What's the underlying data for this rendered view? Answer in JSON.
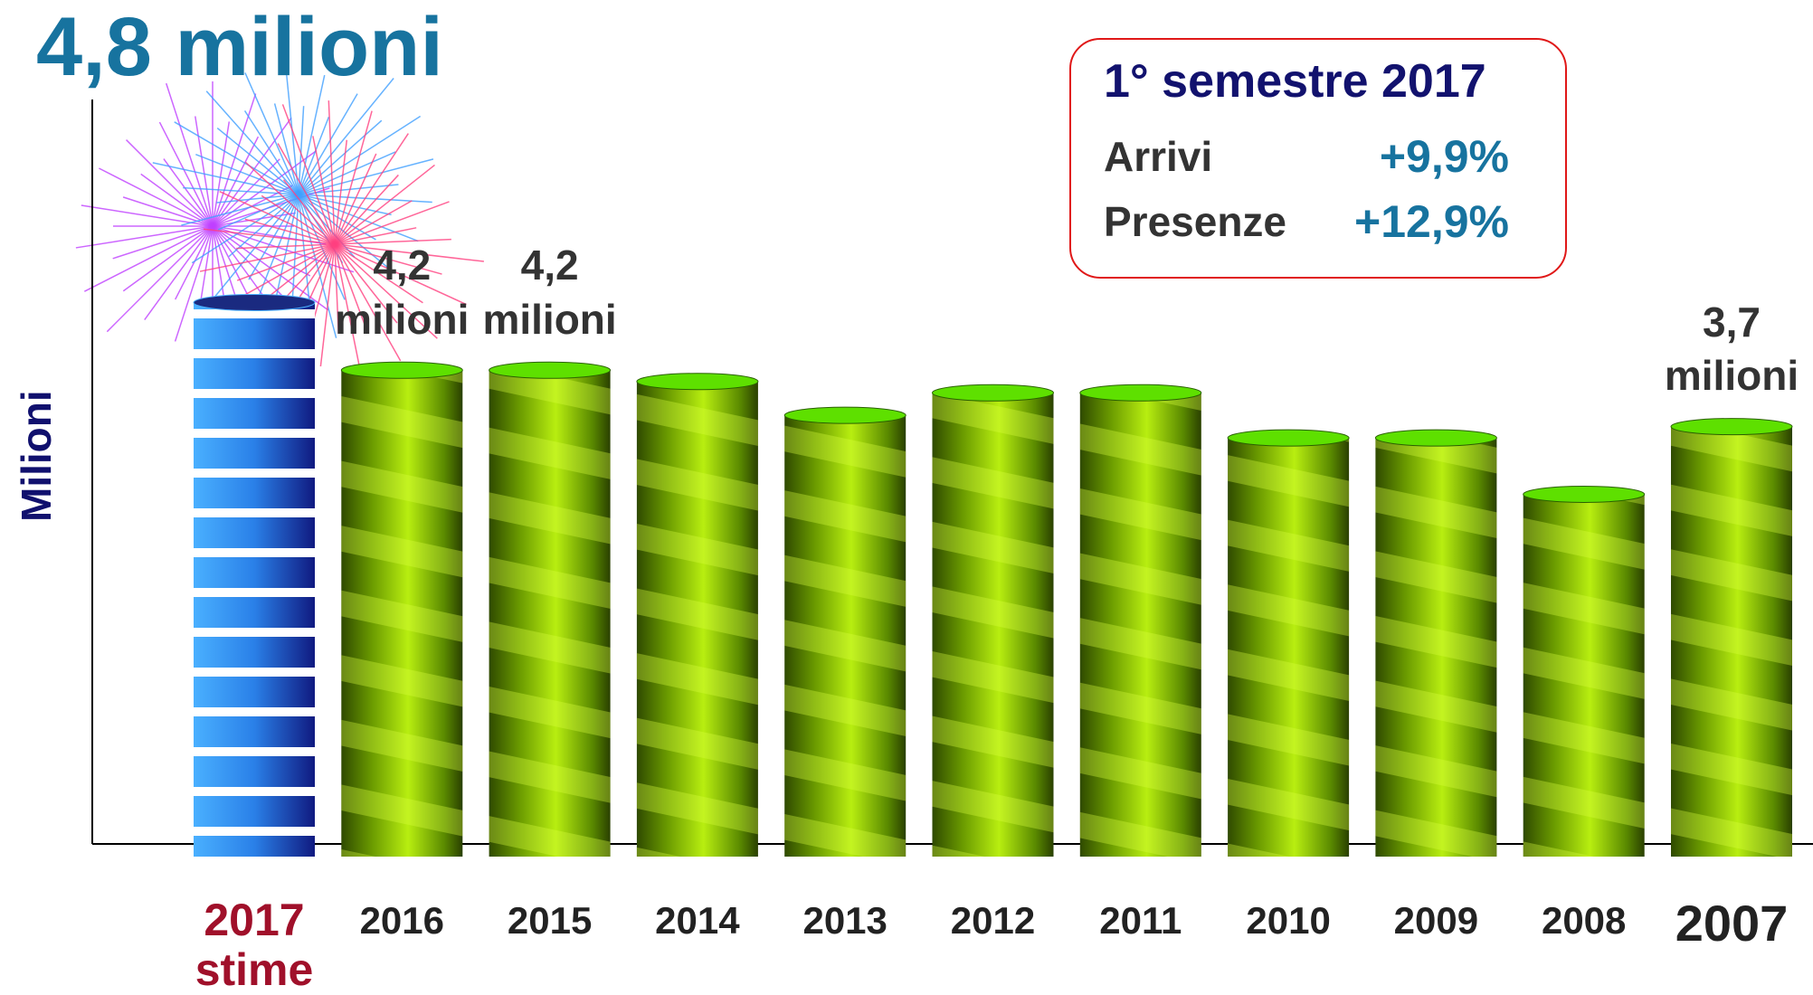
{
  "chart_data": {
    "type": "bar",
    "title": "4,8 milioni",
    "y_label": "Milioni",
    "categories": [
      "2017 stime",
      "2016",
      "2015",
      "2014",
      "2013",
      "2012",
      "2011",
      "2010",
      "2009",
      "2008",
      "2007"
    ],
    "values": [
      4.8,
      4.2,
      4.2,
      4.1,
      3.8,
      4.0,
      4.0,
      3.6,
      3.6,
      3.1,
      3.7
    ],
    "value_labels": [
      null,
      "4,2 milioni",
      "4,2 milioni",
      null,
      null,
      null,
      null,
      null,
      null,
      null,
      "3,7 milioni"
    ],
    "color": "#8fd400",
    "highlight_color": "#2f8cf0",
    "ylim": [
      0,
      6.6
    ],
    "annotation": {
      "title": "1° semestre 2017",
      "rows": [
        {
          "label": "Arrivi",
          "value": "+9,9%"
        },
        {
          "label": "Presenze",
          "value": "+12,9%"
        }
      ]
    }
  }
}
